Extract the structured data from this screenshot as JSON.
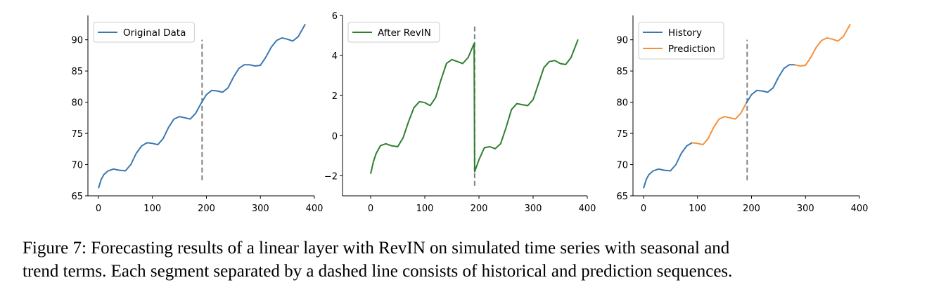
{
  "chart_data": [
    {
      "type": "line",
      "xlim": [
        -19.5,
        400
      ],
      "ylim": [
        65,
        93.9
      ],
      "xticks": [
        0,
        100,
        200,
        300,
        400
      ],
      "yticks": [
        65,
        70,
        75,
        80,
        85,
        90
      ],
      "legend": "upper left",
      "vline": {
        "x": 192,
        "ymin": 67.5,
        "ymax": 90
      },
      "x": [
        0,
        5,
        10,
        18,
        28,
        38,
        50,
        60,
        70,
        80,
        90,
        100,
        110,
        120,
        130,
        140,
        150,
        160,
        170,
        180,
        190,
        200,
        210,
        220,
        230,
        240,
        250,
        260,
        270,
        280,
        290,
        300,
        310,
        320,
        330,
        340,
        350,
        360,
        370,
        383
      ],
      "series": [
        {
          "name": "Original Data",
          "color": "#3b78b0",
          "values": [
            66.2,
            67.6,
            68.4,
            69.0,
            69.3,
            69.1,
            69.0,
            70.0,
            71.8,
            73.0,
            73.5,
            73.4,
            73.2,
            74.2,
            76.0,
            77.3,
            77.7,
            77.5,
            77.3,
            78.2,
            79.8,
            81.2,
            81.9,
            81.8,
            81.6,
            82.3,
            84.0,
            85.4,
            86.0,
            86.0,
            85.8,
            85.9,
            87.2,
            88.8,
            89.9,
            90.3,
            90.1,
            89.8,
            90.5,
            92.5
          ]
        }
      ]
    },
    {
      "type": "line",
      "xlim": [
        -52,
        400
      ],
      "ylim": [
        -3,
        6
      ],
      "xticks": [
        0,
        100,
        200,
        300,
        400
      ],
      "yticks": [
        {
          "value": -2,
          "label": "−2"
        },
        0,
        2,
        4,
        6
      ],
      "legend": "upper left",
      "vline": {
        "x": 192,
        "ymin": -2.5,
        "ymax": 5.5
      },
      "x": [
        0,
        5,
        10,
        18,
        28,
        38,
        50,
        60,
        70,
        80,
        90,
        100,
        110,
        120,
        130,
        140,
        150,
        160,
        170,
        180,
        191,
        192,
        200,
        210,
        220,
        230,
        240,
        250,
        260,
        270,
        280,
        290,
        300,
        310,
        320,
        330,
        340,
        350,
        360,
        370,
        383
      ],
      "series": [
        {
          "name": "After RevIN",
          "color": "#2f7f2f",
          "values": [
            -1.9,
            -1.3,
            -0.9,
            -0.5,
            -0.4,
            -0.5,
            -0.55,
            -0.1,
            0.7,
            1.4,
            1.7,
            1.65,
            1.5,
            1.9,
            2.8,
            3.6,
            3.8,
            3.7,
            3.6,
            3.9,
            4.6,
            -1.8,
            -1.2,
            -0.6,
            -0.55,
            -0.65,
            -0.4,
            0.4,
            1.3,
            1.6,
            1.55,
            1.5,
            1.8,
            2.6,
            3.4,
            3.7,
            3.75,
            3.6,
            3.55,
            3.9,
            4.8
          ]
        }
      ]
    },
    {
      "type": "line",
      "xlim": [
        -19.5,
        400
      ],
      "ylim": [
        65,
        93.9
      ],
      "xticks": [
        0,
        100,
        200,
        300,
        400
      ],
      "yticks": [
        65,
        70,
        75,
        80,
        85,
        90
      ],
      "legend": "upper left",
      "vline": {
        "x": 192,
        "ymin": 67.5,
        "ymax": 90
      },
      "x": [
        0,
        5,
        10,
        18,
        28,
        38,
        50,
        60,
        70,
        80,
        90,
        100,
        110,
        120,
        130,
        140,
        150,
        160,
        170,
        180,
        190,
        200,
        210,
        220,
        230,
        240,
        250,
        260,
        270,
        280,
        290,
        300,
        310,
        320,
        330,
        340,
        350,
        360,
        370,
        383
      ],
      "series": [
        {
          "name": "History",
          "color": "#3b78b0",
          "values": [
            66.2,
            67.6,
            68.4,
            69.0,
            69.3,
            69.1,
            69.0,
            70.0,
            71.8,
            73.0,
            73.5,
            null,
            null,
            null,
            null,
            null,
            null,
            null,
            null,
            null,
            79.8,
            81.2,
            81.9,
            81.8,
            81.6,
            82.3,
            84.0,
            85.4,
            86.0,
            86.0,
            null,
            null,
            null,
            null,
            null,
            null,
            null,
            null,
            null,
            null
          ]
        },
        {
          "name": "Prediction",
          "color": "#f5913b",
          "values": [
            null,
            null,
            null,
            null,
            null,
            null,
            null,
            null,
            null,
            null,
            73.5,
            73.4,
            73.2,
            74.2,
            76.0,
            77.3,
            77.7,
            77.5,
            77.3,
            78.2,
            79.8,
            null,
            null,
            null,
            null,
            null,
            null,
            null,
            null,
            86.0,
            85.8,
            85.9,
            87.2,
            88.8,
            89.9,
            90.3,
            90.1,
            89.8,
            90.5,
            92.5
          ]
        }
      ]
    }
  ],
  "caption": [
    "Figure 7: Forecasting results of a linear layer with RevIN on simulated time series with seasonal and",
    "trend terms. Each segment separated by a dashed line consists of historical and prediction sequences."
  ]
}
